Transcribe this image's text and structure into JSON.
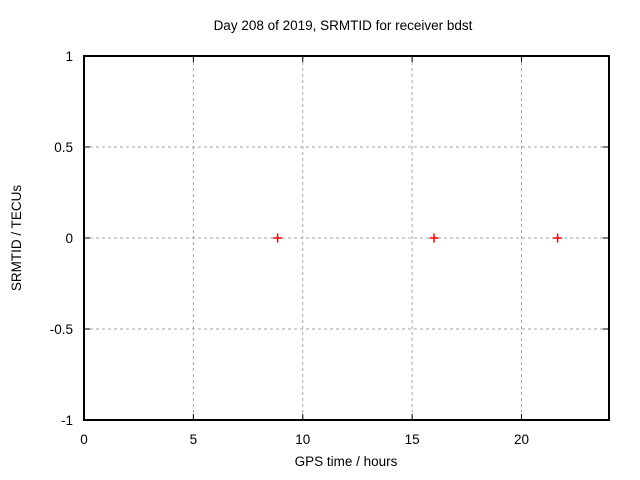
{
  "window": {
    "background": "#ffffff"
  },
  "chart_data": {
    "type": "scatter",
    "title": "Day 208 of 2019, SRMTID for receiver bdst",
    "xlabel": "GPS time / hours",
    "ylabel": "SRMTID / TECUs",
    "xlim": [
      0,
      24
    ],
    "ylim": [
      -1,
      1
    ],
    "xticks": [
      0,
      5,
      10,
      15,
      20
    ],
    "xtick_labels": [
      "0",
      "5",
      "10",
      "15",
      "20"
    ],
    "yticks": [
      -1,
      -0.5,
      0,
      0.5,
      1
    ],
    "ytick_labels": [
      "-1",
      "-0.5",
      "0",
      "0.5",
      "1"
    ],
    "grid": true,
    "grid_style": "dashed",
    "legend": "none",
    "series": [
      {
        "name": "SRMTID",
        "marker": "plus",
        "color": "#ff0000",
        "points": [
          {
            "x": 8.85,
            "y": 0
          },
          {
            "x": 16.0,
            "y": 0
          },
          {
            "x": 21.65,
            "y": 0
          }
        ]
      }
    ],
    "colors": {
      "axis": "#000000",
      "grid": "#a6a6a6",
      "text": "#000000",
      "background": "#ffffff"
    }
  }
}
